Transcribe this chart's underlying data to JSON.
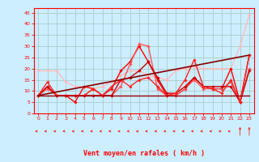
{
  "title": "",
  "xlabel": "Vent moyen/en rafales ( km/h )",
  "bg_color": "#cceeff",
  "grid_color": "#aacccc",
  "axis_color": "#ff0000",
  "xlim": [
    -0.5,
    23.5
  ],
  "ylim": [
    0,
    47
  ],
  "xticks": [
    0,
    1,
    2,
    3,
    4,
    5,
    6,
    7,
    8,
    9,
    10,
    11,
    12,
    13,
    14,
    15,
    16,
    17,
    18,
    19,
    20,
    21,
    22,
    23
  ],
  "yticks": [
    0,
    5,
    10,
    15,
    20,
    25,
    30,
    35,
    40,
    45
  ],
  "lines": [
    {
      "x": [
        0,
        1,
        2,
        3,
        4,
        5,
        6,
        7,
        8,
        9,
        10,
        11,
        12,
        13,
        14,
        15,
        16,
        17,
        18,
        19,
        20,
        21,
        22,
        23
      ],
      "y": [
        19,
        19,
        19,
        14,
        12,
        12,
        11,
        12,
        14,
        17,
        19,
        19,
        17,
        16,
        15,
        19,
        20,
        21,
        20,
        20,
        20,
        20,
        30,
        44
      ],
      "color": "#ffbbbb",
      "lw": 1.0,
      "marker": "D",
      "ms": 1.8
    },
    {
      "x": [
        0,
        1,
        2,
        3,
        4,
        5,
        6,
        7,
        8,
        9,
        10,
        11,
        12,
        13,
        14,
        15,
        16,
        17,
        18,
        19,
        20,
        21,
        22,
        23
      ],
      "y": [
        8,
        12,
        8,
        8,
        5,
        12,
        11,
        8,
        11,
        19,
        23,
        30,
        23,
        15,
        8,
        8,
        11,
        16,
        12,
        11,
        11,
        20,
        5,
        26
      ],
      "color": "#ff0000",
      "lw": 1.0,
      "marker": "D",
      "ms": 1.8
    },
    {
      "x": [
        0,
        1,
        2,
        3,
        4,
        5,
        6,
        7,
        8,
        9,
        10,
        11,
        12,
        13,
        14,
        15,
        16,
        17,
        18,
        19,
        20,
        21,
        22,
        23
      ],
      "y": [
        8,
        11,
        8,
        8,
        8,
        8,
        11,
        8,
        8,
        12,
        22,
        31,
        30,
        11,
        8,
        8,
        11,
        15,
        11,
        11,
        11,
        14,
        5,
        20
      ],
      "color": "#ff5555",
      "lw": 1.0,
      "marker": "D",
      "ms": 1.8
    },
    {
      "x": [
        0,
        1,
        2,
        3,
        4,
        5,
        6,
        7,
        8,
        9,
        10,
        11,
        12,
        13,
        14,
        15,
        16,
        17,
        18,
        19,
        20,
        21,
        22,
        23
      ],
      "y": [
        8,
        12,
        8,
        8,
        8,
        8,
        8,
        8,
        8,
        15,
        16,
        19,
        23,
        16,
        9,
        9,
        12,
        16,
        12,
        12,
        12,
        12,
        5,
        19
      ],
      "color": "#cc0000",
      "lw": 1.0,
      "marker": "D",
      "ms": 1.8
    },
    {
      "x": [
        0,
        1,
        2,
        3,
        4,
        5,
        6,
        7,
        8,
        9,
        10,
        11,
        12,
        13,
        14,
        15,
        16,
        17,
        18,
        19,
        20,
        21,
        22,
        23
      ],
      "y": [
        8,
        14,
        8,
        8,
        8,
        8,
        11,
        8,
        12,
        15,
        12,
        15,
        16,
        12,
        8,
        9,
        15,
        24,
        12,
        11,
        9,
        15,
        5,
        26
      ],
      "color": "#ff2222",
      "lw": 1.0,
      "marker": "D",
      "ms": 1.8
    },
    {
      "x": [
        0,
        23
      ],
      "y": [
        8,
        8
      ],
      "color": "#990000",
      "lw": 1.0,
      "marker": null,
      "ms": 0
    },
    {
      "x": [
        0,
        23
      ],
      "y": [
        8,
        26
      ],
      "color": "#880000",
      "lw": 1.2,
      "marker": null,
      "ms": 0
    }
  ],
  "arrow_color": "#ff0000",
  "xlabel_fontsize": 6.0,
  "tick_fontsize": 4.5
}
